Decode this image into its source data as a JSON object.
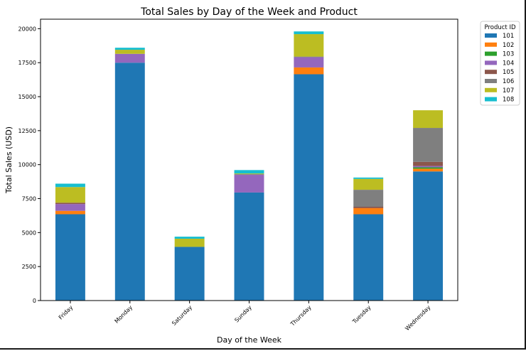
{
  "chart_data": {
    "type": "bar",
    "stacked": true,
    "title": "Total Sales by Day of the Week and Product",
    "xlabel": "Day of the Week",
    "ylabel": "Total Sales (USD)",
    "ylim": [
      0,
      20700
    ],
    "yticks": [
      0,
      2500,
      5000,
      7500,
      10000,
      12500,
      15000,
      17500,
      20000
    ],
    "grid": false,
    "legend_title": "Product ID",
    "legend_position": "outside top-right",
    "categories": [
      "Friday",
      "Monday",
      "Saturday",
      "Sunday",
      "Thursday",
      "Tuesday",
      "Wednesday"
    ],
    "series": [
      {
        "name": "101",
        "color": "#1f77b4",
        "values": [
          6350,
          17500,
          3950,
          7950,
          16650,
          6350,
          9500
        ]
      },
      {
        "name": "102",
        "color": "#ff7f0e",
        "values": [
          250,
          0,
          0,
          0,
          500,
          450,
          200
        ]
      },
      {
        "name": "103",
        "color": "#2ca02c",
        "values": [
          0,
          0,
          0,
          0,
          0,
          0,
          100
        ]
      },
      {
        "name": "104",
        "color": "#9467bd",
        "values": [
          500,
          650,
          0,
          1300,
          750,
          0,
          100
        ]
      },
      {
        "name": "105",
        "color": "#8c564b",
        "values": [
          100,
          0,
          0,
          0,
          0,
          100,
          300
        ]
      },
      {
        "name": "106",
        "color": "#7f7f7f",
        "values": [
          0,
          0,
          0,
          50,
          50,
          1250,
          2500
        ]
      },
      {
        "name": "107",
        "color": "#bcbd22",
        "values": [
          1150,
          300,
          600,
          50,
          1650,
          800,
          1300
        ]
      },
      {
        "name": "108",
        "color": "#17becf",
        "values": [
          250,
          150,
          150,
          250,
          200,
          100,
          0
        ]
      }
    ]
  }
}
